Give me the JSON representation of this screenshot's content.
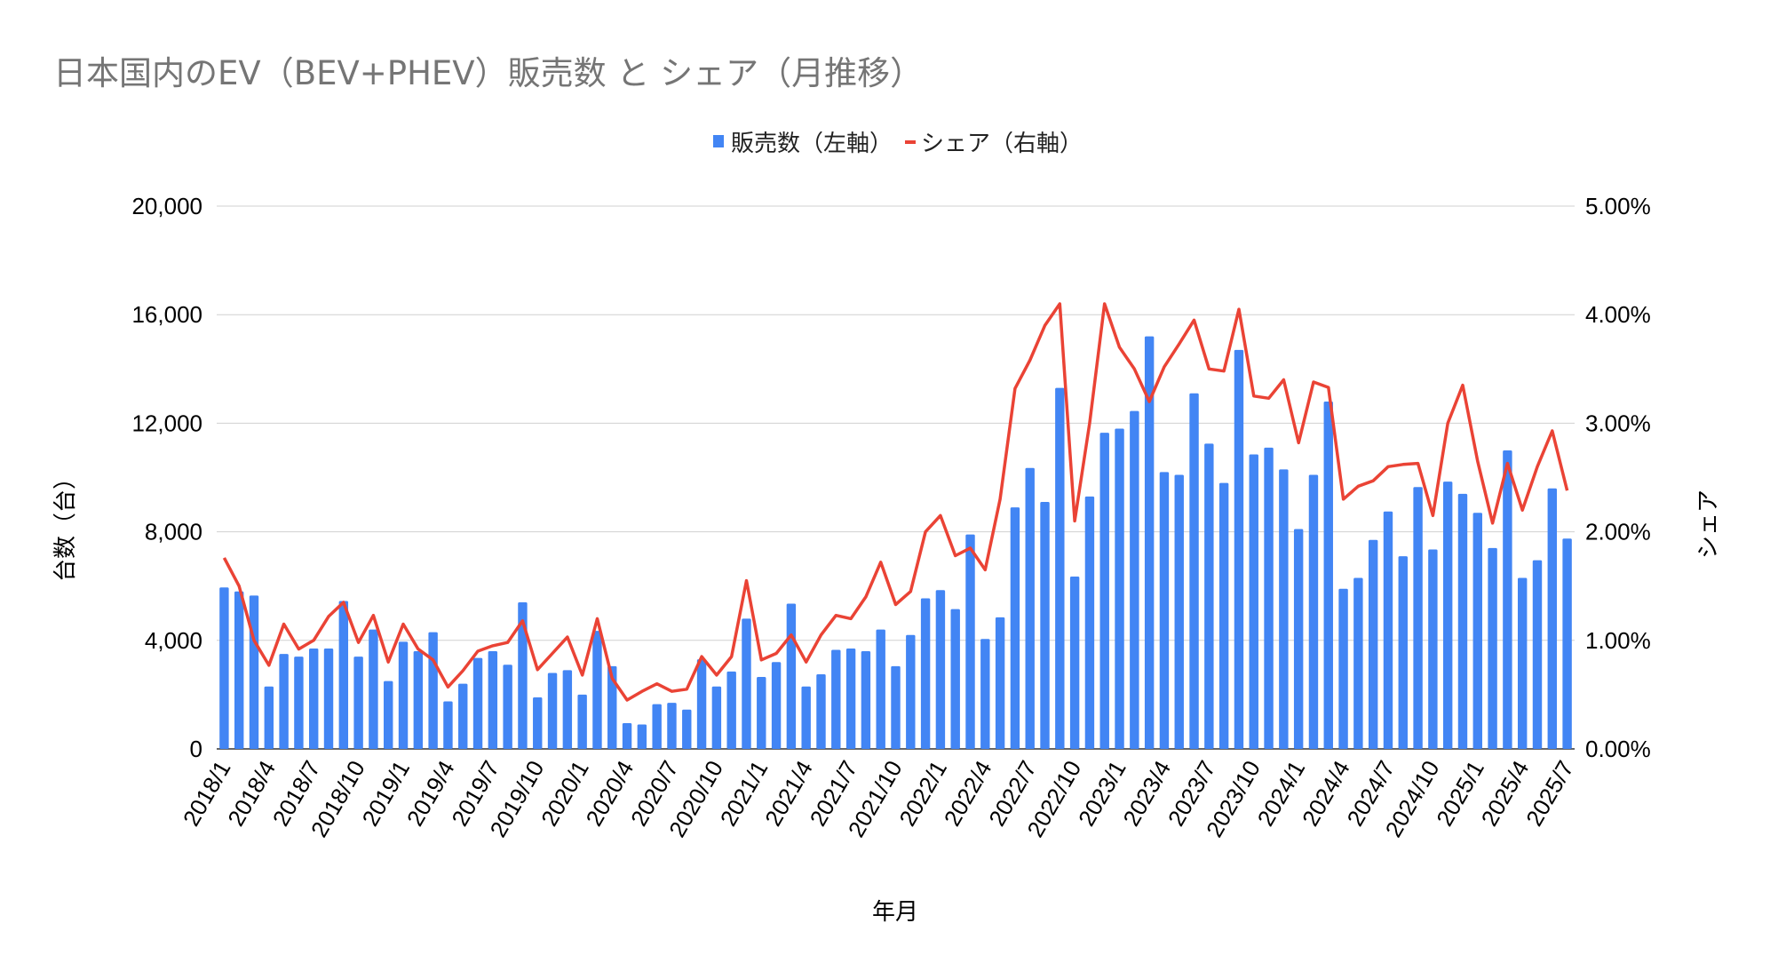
{
  "chart_data": {
    "type": "bar+line",
    "title": "日本国内のEV（BEV+PHEV）販売数 と シェア（月推移）",
    "xlabel": "年月",
    "ylabel_left": "台数（台）",
    "ylabel_right": "シェア",
    "legend_position": "top",
    "grid": true,
    "ylim_left": [
      0,
      20000
    ],
    "ylim_right": [
      0,
      5
    ],
    "left_ticks": [
      "0",
      "4,000",
      "8,000",
      "12,000",
      "16,000",
      "20,000"
    ],
    "right_ticks": [
      "0.00%",
      "1.00%",
      "2.00%",
      "3.00%",
      "4.00%",
      "5.00%"
    ],
    "colors": {
      "bar": "#4285F4",
      "line": "#EA4335",
      "grid": "#D0D0D0",
      "title": "#757575"
    },
    "categories": [
      "2018/1",
      "2018/2",
      "2018/3",
      "2018/4",
      "2018/5",
      "2018/6",
      "2018/7",
      "2018/8",
      "2018/9",
      "2018/10",
      "2018/11",
      "2018/12",
      "2019/1",
      "2019/2",
      "2019/3",
      "2019/4",
      "2019/5",
      "2019/6",
      "2019/7",
      "2019/8",
      "2019/9",
      "2019/10",
      "2019/11",
      "2019/12",
      "2020/1",
      "2020/2",
      "2020/3",
      "2020/4",
      "2020/5",
      "2020/6",
      "2020/7",
      "2020/8",
      "2020/9",
      "2020/10",
      "2020/11",
      "2020/12",
      "2021/1",
      "2021/2",
      "2021/3",
      "2021/4",
      "2021/5",
      "2021/6",
      "2021/7",
      "2021/8",
      "2021/9",
      "2021/10",
      "2021/11",
      "2021/12",
      "2022/1",
      "2022/2",
      "2022/3",
      "2022/4",
      "2022/5",
      "2022/6",
      "2022/7",
      "2022/8",
      "2022/9",
      "2022/10",
      "2022/11",
      "2022/12",
      "2023/1",
      "2023/2",
      "2023/3",
      "2023/4",
      "2023/5",
      "2023/6",
      "2023/7",
      "2023/8",
      "2023/9",
      "2023/10",
      "2023/11",
      "2023/12",
      "2024/1",
      "2024/2",
      "2024/3",
      "2024/4",
      "2024/5",
      "2024/6",
      "2024/7",
      "2024/8",
      "2024/9",
      "2024/10",
      "2024/11",
      "2024/12",
      "2025/1",
      "2025/2",
      "2025/3",
      "2025/4",
      "2025/5",
      "2025/6",
      "2025/7"
    ],
    "series": [
      {
        "name": "販売数（左軸）",
        "type": "bar",
        "axis": "left",
        "values": [
          5950,
          5800,
          5650,
          2300,
          3500,
          3400,
          3700,
          3700,
          5450,
          3400,
          4400,
          2500,
          3950,
          3600,
          4300,
          1750,
          2400,
          3350,
          3600,
          3100,
          5400,
          1900,
          2800,
          2900,
          2000,
          4350,
          3050,
          950,
          900,
          1650,
          1700,
          1450,
          3300,
          2300,
          2850,
          4800,
          2650,
          3200,
          5350,
          2300,
          2750,
          3650,
          3700,
          3600,
          4400,
          3050,
          4200,
          5550,
          5850,
          5150,
          7900,
          4050,
          4850,
          8900,
          10350,
          9100,
          13300,
          6350,
          9300,
          11650,
          11800,
          12450,
          15200,
          10200,
          10100,
          13100,
          11250,
          9800,
          14700,
          10850,
          11100,
          10300,
          8100,
          10100,
          12800,
          5900,
          6300,
          7700,
          8750,
          7100,
          9650,
          7350,
          9850,
          9400,
          8700,
          7400,
          11000,
          6300,
          6950,
          9600,
          7750
        ]
      },
      {
        "name": "シェア（右軸）",
        "type": "line",
        "axis": "right",
        "unit": "%",
        "values": [
          1.76,
          1.5,
          1.0,
          0.77,
          1.15,
          0.92,
          1.0,
          1.22,
          1.35,
          0.98,
          1.23,
          0.8,
          1.15,
          0.92,
          0.82,
          0.57,
          0.72,
          0.9,
          0.95,
          0.98,
          1.18,
          0.73,
          0.88,
          1.03,
          0.68,
          1.2,
          0.65,
          0.45,
          0.53,
          0.6,
          0.53,
          0.55,
          0.85,
          0.68,
          0.85,
          1.55,
          0.82,
          0.88,
          1.05,
          0.8,
          1.05,
          1.23,
          1.2,
          1.4,
          1.72,
          1.33,
          1.45,
          2.0,
          2.15,
          1.78,
          1.85,
          1.65,
          2.3,
          3.32,
          3.58,
          3.9,
          4.1,
          2.1,
          3.0,
          4.1,
          3.7,
          3.5,
          3.2,
          3.52,
          3.73,
          3.95,
          3.5,
          3.48,
          4.05,
          3.25,
          3.23,
          3.4,
          2.82,
          3.38,
          3.33,
          2.3,
          2.42,
          2.47,
          2.6,
          2.62,
          2.63,
          2.15,
          3.0,
          3.35,
          2.65,
          2.08,
          2.63,
          2.2,
          2.6,
          2.93,
          2.38
        ]
      }
    ]
  }
}
